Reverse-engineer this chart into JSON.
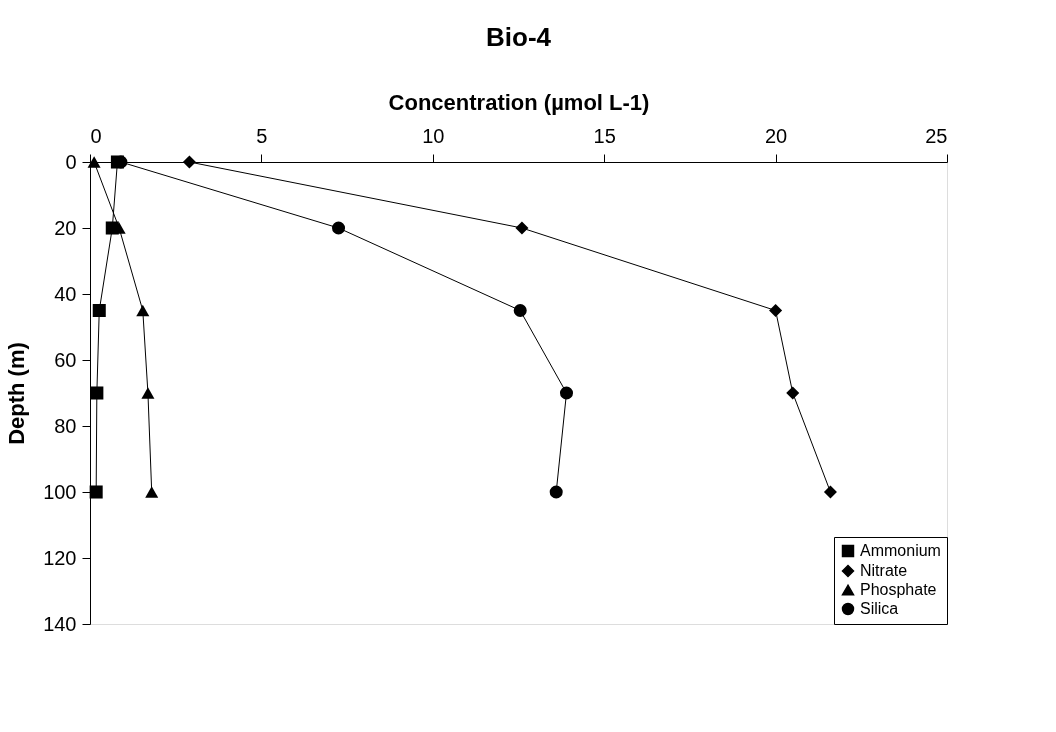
{
  "chart_data": {
    "type": "line",
    "title": "Bio-4",
    "xlabel": "Concentration (µmol L-1)",
    "ylabel": "Depth (m)",
    "xlim": [
      0,
      25
    ],
    "xticks": [
      0,
      5,
      10,
      15,
      20,
      25
    ],
    "ylim": [
      140,
      0
    ],
    "yticks": [
      0,
      20,
      40,
      60,
      80,
      100,
      120,
      140
    ],
    "grid": false,
    "legend": "bottom right",
    "line_style": "solid",
    "series": [
      {
        "name": "Ammonium",
        "color": "#000000",
        "marker": "square",
        "x": [
          0.8,
          0.65,
          0.27,
          0.2,
          0.18
        ],
        "values": [
          0,
          20,
          45,
          70,
          100
        ]
      },
      {
        "name": "Nitrate",
        "color": "#000000",
        "marker": "diamond",
        "x": [
          2.9,
          12.6,
          20.0,
          20.5,
          21.6
        ],
        "values": [
          0,
          20,
          45,
          70,
          100
        ]
      },
      {
        "name": "Phosphate",
        "color": "#000000",
        "marker": "triangle",
        "x": [
          0.12,
          0.85,
          1.54,
          1.69,
          1.8
        ],
        "values": [
          0,
          20,
          45,
          70,
          100
        ]
      },
      {
        "name": "Silica",
        "color": "#000000",
        "marker": "circle",
        "x": [
          0.9,
          7.25,
          12.55,
          13.9,
          13.6
        ],
        "values": [
          0,
          20,
          45,
          70,
          100
        ]
      }
    ]
  }
}
